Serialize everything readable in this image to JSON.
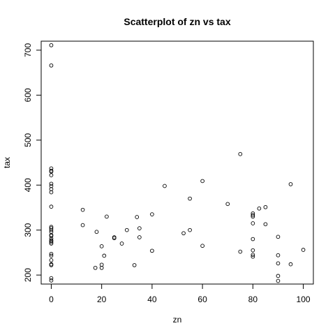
{
  "chart_data": {
    "type": "scatter",
    "title": "Scatterplot of zn vs tax",
    "xlabel": "zn",
    "ylabel": "tax",
    "xlim": [
      -4,
      104
    ],
    "ylim": [
      180,
      720
    ],
    "xticks": [
      0,
      20,
      40,
      60,
      80,
      100
    ],
    "yticks": [
      200,
      300,
      400,
      500,
      600,
      700
    ],
    "grid": false,
    "legend": "none",
    "point_color": "#000000",
    "points": [
      {
        "x": 0,
        "y": 711
      },
      {
        "x": 0,
        "y": 666
      },
      {
        "x": 0,
        "y": 437
      },
      {
        "x": 0,
        "y": 432
      },
      {
        "x": 0,
        "y": 430
      },
      {
        "x": 0,
        "y": 422
      },
      {
        "x": 0,
        "y": 403
      },
      {
        "x": 0,
        "y": 398
      },
      {
        "x": 0,
        "y": 391
      },
      {
        "x": 0,
        "y": 384
      },
      {
        "x": 0,
        "y": 352
      },
      {
        "x": 0,
        "y": 307
      },
      {
        "x": 0,
        "y": 304
      },
      {
        "x": 0,
        "y": 300
      },
      {
        "x": 0,
        "y": 296
      },
      {
        "x": 0,
        "y": 289
      },
      {
        "x": 0,
        "y": 287
      },
      {
        "x": 0,
        "y": 281
      },
      {
        "x": 0,
        "y": 277
      },
      {
        "x": 0,
        "y": 276
      },
      {
        "x": 0,
        "y": 273
      },
      {
        "x": 0,
        "y": 270
      },
      {
        "x": 0,
        "y": 247
      },
      {
        "x": 0,
        "y": 243
      },
      {
        "x": 0,
        "y": 233
      },
      {
        "x": 0,
        "y": 224
      },
      {
        "x": 0,
        "y": 222
      },
      {
        "x": 0,
        "y": 193
      },
      {
        "x": 0,
        "y": 188
      },
      {
        "x": 12.5,
        "y": 345
      },
      {
        "x": 12.5,
        "y": 311
      },
      {
        "x": 17.5,
        "y": 216
      },
      {
        "x": 18,
        "y": 296
      },
      {
        "x": 20,
        "y": 264
      },
      {
        "x": 20,
        "y": 223
      },
      {
        "x": 20,
        "y": 216
      },
      {
        "x": 21,
        "y": 243
      },
      {
        "x": 22,
        "y": 330
      },
      {
        "x": 25,
        "y": 284
      },
      {
        "x": 25,
        "y": 282
      },
      {
        "x": 28,
        "y": 270
      },
      {
        "x": 30,
        "y": 300
      },
      {
        "x": 33,
        "y": 222
      },
      {
        "x": 34,
        "y": 329
      },
      {
        "x": 35,
        "y": 304
      },
      {
        "x": 35,
        "y": 284
      },
      {
        "x": 40,
        "y": 335
      },
      {
        "x": 40,
        "y": 254
      },
      {
        "x": 45,
        "y": 398
      },
      {
        "x": 52.5,
        "y": 293
      },
      {
        "x": 55,
        "y": 370
      },
      {
        "x": 55,
        "y": 300
      },
      {
        "x": 60,
        "y": 409
      },
      {
        "x": 60,
        "y": 265
      },
      {
        "x": 70,
        "y": 358
      },
      {
        "x": 75,
        "y": 469
      },
      {
        "x": 75,
        "y": 252
      },
      {
        "x": 80,
        "y": 337
      },
      {
        "x": 80,
        "y": 333
      },
      {
        "x": 80,
        "y": 330
      },
      {
        "x": 80,
        "y": 315
      },
      {
        "x": 80,
        "y": 280
      },
      {
        "x": 80,
        "y": 255
      },
      {
        "x": 80,
        "y": 245
      },
      {
        "x": 80,
        "y": 241
      },
      {
        "x": 82.5,
        "y": 348
      },
      {
        "x": 85,
        "y": 351
      },
      {
        "x": 85,
        "y": 313
      },
      {
        "x": 90,
        "y": 285
      },
      {
        "x": 90,
        "y": 244
      },
      {
        "x": 90,
        "y": 226
      },
      {
        "x": 90,
        "y": 198
      },
      {
        "x": 90,
        "y": 187
      },
      {
        "x": 95,
        "y": 402
      },
      {
        "x": 95,
        "y": 224
      },
      {
        "x": 100,
        "y": 256
      }
    ]
  }
}
